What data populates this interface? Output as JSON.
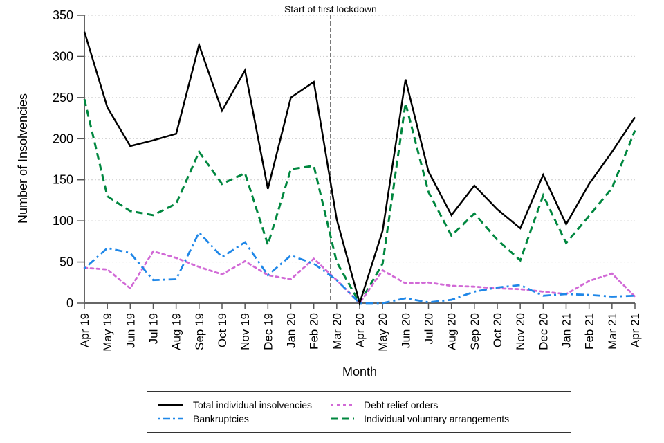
{
  "chart_data": {
    "type": "line",
    "title": "",
    "xlabel": "Month",
    "ylabel": "Number of Insolvencies",
    "ylim": [
      0,
      350
    ],
    "yticks": [
      0,
      50,
      100,
      150,
      200,
      250,
      300,
      350
    ],
    "grid": "horizontal dotted",
    "categories": [
      "Apr 19",
      "May 19",
      "Jun 19",
      "Jul 19",
      "Aug 19",
      "Sep 19",
      "Oct 19",
      "Nov 19",
      "Dec 19",
      "Jan 20",
      "Feb 20",
      "Mar 20",
      "Apr 20",
      "May 20",
      "Jun 20",
      "Jul 20",
      "Aug 20",
      "Sep 20",
      "Oct 20",
      "Nov 20",
      "Dec 20",
      "Jan 21",
      "Feb 21",
      "Mar 21",
      "Apr 21"
    ],
    "series": [
      {
        "name": "Total individual insolvencies",
        "color": "#000000",
        "dash": "solid",
        "values": [
          330,
          238,
          191,
          198,
          206,
          314,
          234,
          283,
          139,
          250,
          269,
          102,
          0,
          88,
          272,
          160,
          107,
          143,
          114,
          91,
          156,
          96,
          145,
          184,
          226
        ]
      },
      {
        "name": "Bankruptcies",
        "color": "#1f87e8",
        "dash": "dashdot",
        "values": [
          42,
          67,
          61,
          28,
          29,
          86,
          56,
          74,
          34,
          58,
          48,
          28,
          0,
          0,
          6,
          1,
          4,
          14,
          19,
          22,
          9,
          11,
          10,
          8,
          9
        ]
      },
      {
        "name": "Debt relief orders",
        "color": "#d169d6",
        "dash": "dotted",
        "values": [
          43,
          41,
          18,
          63,
          55,
          44,
          35,
          51,
          34,
          29,
          54,
          28,
          0,
          40,
          24,
          25,
          21,
          20,
          18,
          17,
          14,
          11,
          27,
          36,
          8
        ]
      },
      {
        "name": "Individual voluntary arrangements",
        "color": "#00873f",
        "dash": "dashed",
        "values": [
          248,
          130,
          112,
          107,
          121,
          184,
          145,
          158,
          71,
          163,
          167,
          50,
          0,
          48,
          243,
          135,
          82,
          109,
          77,
          52,
          131,
          73,
          106,
          140,
          210
        ]
      }
    ],
    "annotations": [
      {
        "text": "Start of first lockdown",
        "x_position": "between Feb 20 and Mar 20",
        "style": "vertical dashed line"
      }
    ],
    "legend_position": "bottom-center",
    "legend_order": [
      0,
      2,
      1,
      3
    ]
  }
}
